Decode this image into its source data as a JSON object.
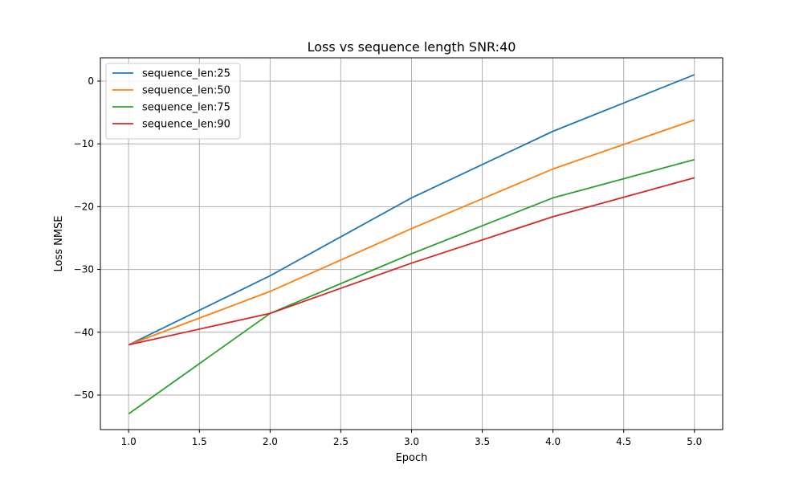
{
  "chart_data": {
    "type": "line",
    "title": "Loss vs sequence length SNR:40",
    "xlabel": "Epoch",
    "ylabel": "Loss NMSE",
    "xlim": [
      0.8,
      5.2
    ],
    "ylim": [
      -55.5,
      3.7
    ],
    "xticks": [
      1.0,
      1.5,
      2.0,
      2.5,
      3.0,
      3.5,
      4.0,
      4.5,
      5.0
    ],
    "xtick_labels": [
      "1.0",
      "1.5",
      "2.0",
      "2.5",
      "3.0",
      "3.5",
      "4.0",
      "4.5",
      "5.0"
    ],
    "yticks": [
      -50,
      -40,
      -30,
      -20,
      -10,
      0
    ],
    "ytick_labels": [
      "−50",
      "−40",
      "−30",
      "−20",
      "−10",
      "0"
    ],
    "grid": true,
    "legend_position": "upper-left",
    "x": [
      1,
      2,
      3,
      4,
      5
    ],
    "series": [
      {
        "name": "sequence_len:25",
        "color": "#1f77b4",
        "values": [
          -42,
          -31,
          -18.6,
          -8,
          1
        ]
      },
      {
        "name": "sequence_len:50",
        "color": "#ff7f0e",
        "values": [
          -42,
          -33.5,
          -23.5,
          -14,
          -6.2
        ]
      },
      {
        "name": "sequence_len:75",
        "color": "#2ca02c",
        "values": [
          -53,
          -37,
          -27.5,
          -18.6,
          -12.5
        ]
      },
      {
        "name": "sequence_len:90",
        "color": "#d62728",
        "values": [
          -42,
          -37,
          -29,
          -21.6,
          -15.4
        ]
      }
    ]
  }
}
